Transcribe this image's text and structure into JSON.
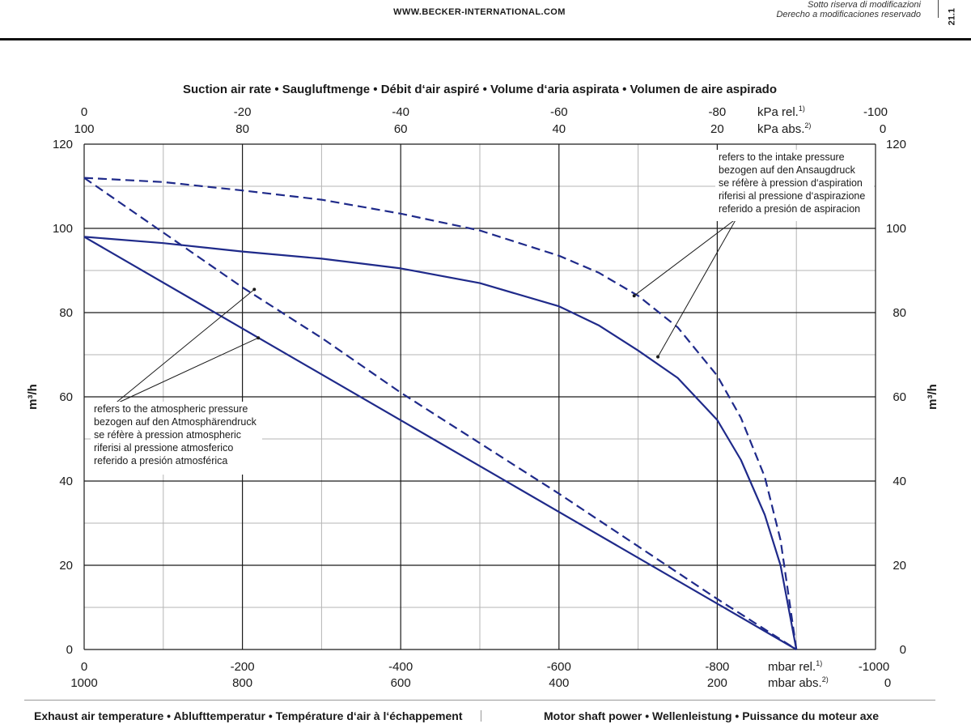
{
  "header": {
    "website": "WWW.BECKER-INTERNATIONAL.COM",
    "notice_lines": [
      "Sotto riserva di modificazioni",
      "Derecho a modificaciones reservado"
    ],
    "page_number": "21.1"
  },
  "footer": {
    "left_label": "Exhaust air temperature  •  Ablufttemperatur  •  Température d‘air à l‘échappement",
    "right_label": "Motor shaft power  •  Wellenleistung  •  Puissance du moteur axe"
  },
  "chart_data": {
    "type": "line",
    "title": "Suction air rate  •  Saugluftmenge  •  Débit d‘air aspiré  •  Volume d‘aria aspirata  •  Volumen de aire aspirado",
    "ylabel": "m³/h",
    "ylabel_right": "m³/h",
    "ylim": [
      0,
      120
    ],
    "y_ticks": [
      0,
      20,
      40,
      60,
      80,
      100,
      120
    ],
    "xlim": [
      0,
      -1000
    ],
    "x_bottom_rel": {
      "ticks": [
        0,
        -200,
        -400,
        -600,
        -800,
        -1000
      ],
      "tick_labels": [
        "0",
        "-200",
        "-400",
        "-600",
        "-800",
        "-1000"
      ],
      "unit": "mbar rel.",
      "unit_sup": "1)"
    },
    "x_bottom_abs": {
      "tick_labels": [
        "1000",
        "800",
        "600",
        "400",
        "200",
        "0"
      ],
      "unit": "mbar abs.",
      "unit_sup": "2)"
    },
    "x_top_rel": {
      "tick_labels": [
        "0",
        "-20",
        "-40",
        "-60",
        "-80",
        "-100"
      ],
      "unit": "kPa rel.",
      "unit_sup": "1)"
    },
    "x_top_abs": {
      "tick_labels": [
        "100",
        "80",
        "60",
        "40",
        "20",
        "0"
      ],
      "unit": "kPa abs.",
      "unit_sup": "2)"
    },
    "grid": true,
    "series": [
      {
        "name": "",
        "style": "solid",
        "x": [
          0,
          -900
        ],
        "y": [
          98,
          0
        ]
      },
      {
        "name": "",
        "style": "dashed",
        "x": [
          0,
          -100,
          -200,
          -300,
          -400,
          -500,
          -600,
          -700,
          -800,
          -900
        ],
        "y": [
          112,
          99,
          86,
          74,
          61,
          49,
          37,
          24.5,
          12,
          0
        ]
      },
      {
        "name": "",
        "style": "solid",
        "x": [
          0,
          -100,
          -200,
          -300,
          -400,
          -500,
          -600,
          -650,
          -700,
          -750,
          -800,
          -830,
          -860,
          -880,
          -900
        ],
        "y": [
          98,
          96.5,
          94.5,
          92.8,
          90.5,
          87,
          81.5,
          77,
          71,
          64.5,
          54.5,
          45,
          32,
          20,
          0
        ]
      },
      {
        "name": "",
        "style": "dashed",
        "x": [
          0,
          -100,
          -200,
          -300,
          -400,
          -500,
          -600,
          -650,
          -700,
          -750,
          -800,
          -830,
          -860,
          -880,
          -900
        ],
        "y": [
          112,
          111,
          109,
          106.8,
          103.5,
          99.5,
          93.5,
          89.5,
          84,
          76.5,
          65,
          55,
          41,
          26,
          0
        ]
      }
    ],
    "annotations": [
      {
        "lines": [
          "refers to the atmospheric pressure",
          "bezogen auf den Atmosphärendruck",
          "se réfère à pression atmospheric",
          "riferisi al pressione atmosferico",
          "referido a presión atmosférica"
        ],
        "points": [
          [
            -215,
            85.5
          ],
          [
            -220,
            74
          ]
        ]
      },
      {
        "lines": [
          "refers to the intake pressure",
          "bezogen auf den Ansaugdruck",
          "se réfère à pression d‘aspiration",
          "riferisi al pressione d‘aspirazione",
          "referido a presión de aspiracion"
        ],
        "points": [
          [
            -695,
            84
          ],
          [
            -725,
            69.5
          ]
        ]
      }
    ],
    "colors": {
      "series": "#1f2a8a",
      "grid": "#b5b5b5",
      "grid_major": "#1a1a1a"
    }
  }
}
